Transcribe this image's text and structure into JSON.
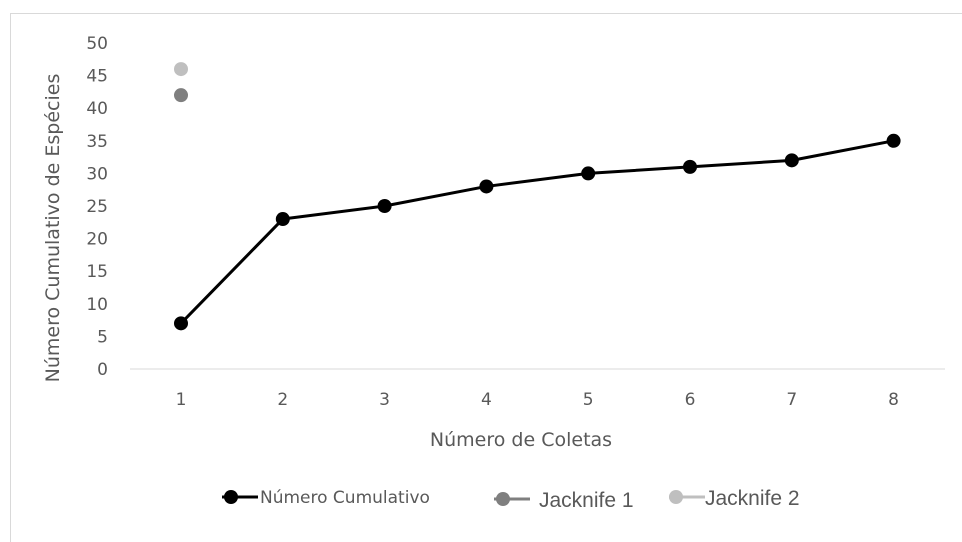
{
  "chart_data": {
    "type": "line",
    "title": "",
    "xlabel": "Número de Coletas",
    "ylabel": "Número Cumulativo de Espécies",
    "categories": [
      "1",
      "2",
      "3",
      "4",
      "5",
      "6",
      "7",
      "8"
    ],
    "x": [
      1,
      2,
      3,
      4,
      5,
      6,
      7,
      8
    ],
    "yticks": [
      "0",
      "5",
      "10",
      "15",
      "20",
      "25",
      "30",
      "35",
      "40",
      "45",
      "50"
    ],
    "ylim": [
      0,
      50
    ],
    "grid": false,
    "legend_position": "bottom",
    "series": [
      {
        "name": "Número Cumulativo",
        "type": "line",
        "color": "#000000",
        "x": [
          1,
          2,
          3,
          4,
          5,
          6,
          7,
          8
        ],
        "values": [
          7,
          23,
          25,
          28,
          30,
          31,
          32,
          35
        ]
      },
      {
        "name": "Jacknife 1",
        "type": "scatter",
        "color": "#7f7f7f",
        "x": [
          1
        ],
        "values": [
          42
        ]
      },
      {
        "name": "Jacknife 2",
        "type": "scatter",
        "color": "#bfbfbf",
        "x": [
          1
        ],
        "values": [
          46
        ]
      }
    ]
  }
}
